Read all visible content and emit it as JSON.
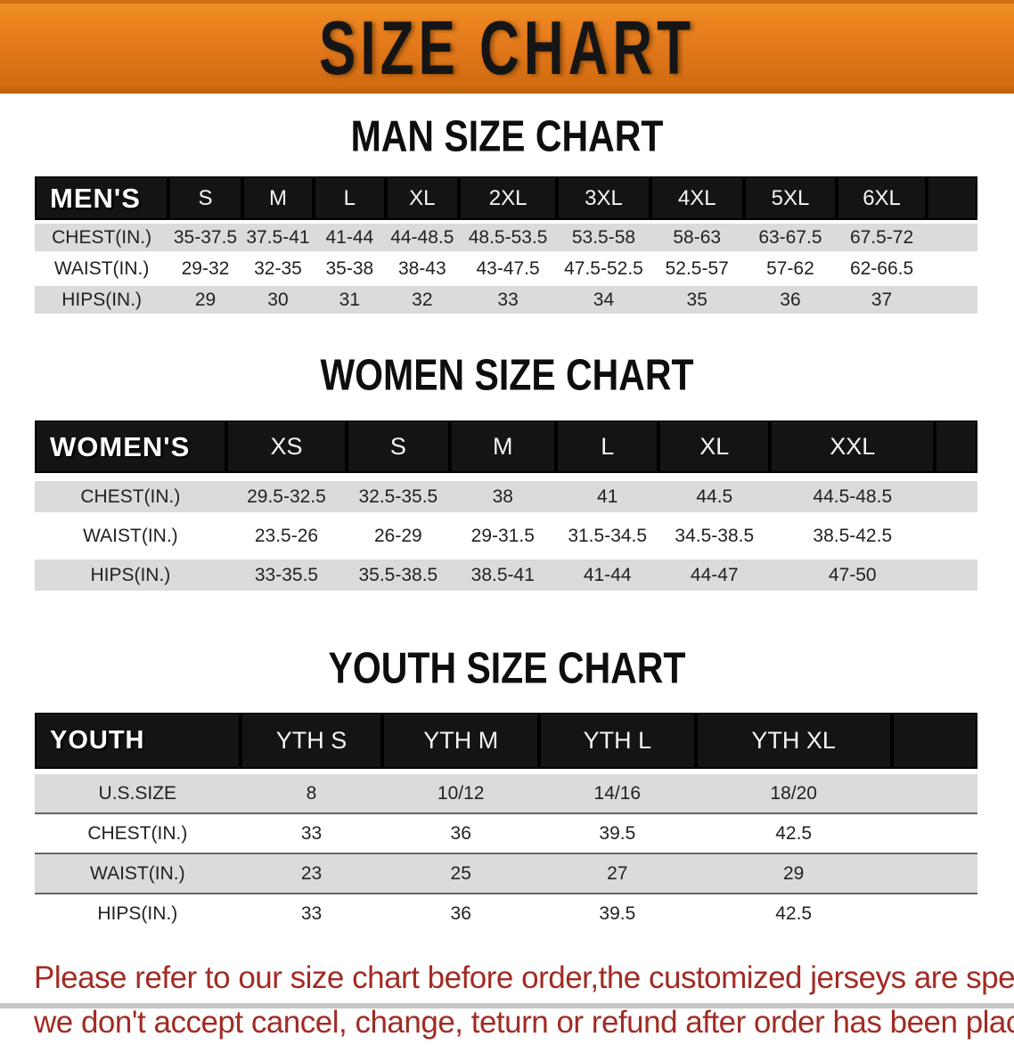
{
  "banner": {
    "title": "SIZE CHART",
    "background": "#e2771b"
  },
  "sections": [
    {
      "id": "men",
      "heading": "MAN SIZE CHART",
      "table": {
        "header": [
          "MEN'S",
          "S",
          "M",
          "L",
          "XL",
          "2XL",
          "3XL",
          "4XL",
          "5XL",
          "6XL"
        ],
        "rows": [
          [
            "CHEST(IN.)",
            "35-37.5",
            "37.5-41",
            "41-44",
            "44-48.5",
            "48.5-53.5",
            "53.5-58",
            "58-63",
            "63-67.5",
            "67.5-72"
          ],
          [
            "WAIST(IN.)",
            "29-32",
            "32-35",
            "35-38",
            "38-43",
            "43-47.5",
            "47.5-52.5",
            "52.5-57",
            "57-62",
            "62-66.5"
          ],
          [
            "HIPS(IN.)",
            "29",
            "30",
            "31",
            "32",
            "33",
            "34",
            "35",
            "36",
            "37"
          ]
        ]
      }
    },
    {
      "id": "women",
      "heading": "WOMEN SIZE CHART",
      "table": {
        "header": [
          "WOMEN'S",
          "XS",
          "S",
          "M",
          "L",
          "XL",
          "XXL"
        ],
        "rows": [
          [
            "CHEST(IN.)",
            "29.5-32.5",
            "32.5-35.5",
            "38",
            "41",
            "44.5",
            "44.5-48.5"
          ],
          [
            "WAIST(IN.)",
            "23.5-26",
            "26-29",
            "29-31.5",
            "31.5-34.5",
            "34.5-38.5",
            "38.5-42.5"
          ],
          [
            "HIPS(IN.)",
            "33-35.5",
            "35.5-38.5",
            "38.5-41",
            "41-44",
            "44-47",
            "47-50"
          ]
        ]
      }
    },
    {
      "id": "youth",
      "heading": "YOUTH SIZE CHART",
      "table": {
        "header": [
          "YOUTH",
          "YTH S",
          "YTH M",
          "YTH L",
          "YTH XL"
        ],
        "rows": [
          [
            "U.S.SIZE",
            "8",
            "10/12",
            "14/16",
            "18/20"
          ],
          [
            "CHEST(IN.)",
            "33",
            "36",
            "39.5",
            "42.5"
          ],
          [
            "WAIST(IN.)",
            "23",
            "25",
            "27",
            "29"
          ],
          [
            "HIPS(IN.)",
            "33",
            "36",
            "39.5",
            "42.5"
          ]
        ]
      }
    }
  ],
  "footer": {
    "color": "#a12c24",
    "lines": [
      "Please refer to our size chart before order,the customized jerseys are special products,",
      "we don't accept cancel, change, teturn or refund after order has been placed!"
    ]
  }
}
